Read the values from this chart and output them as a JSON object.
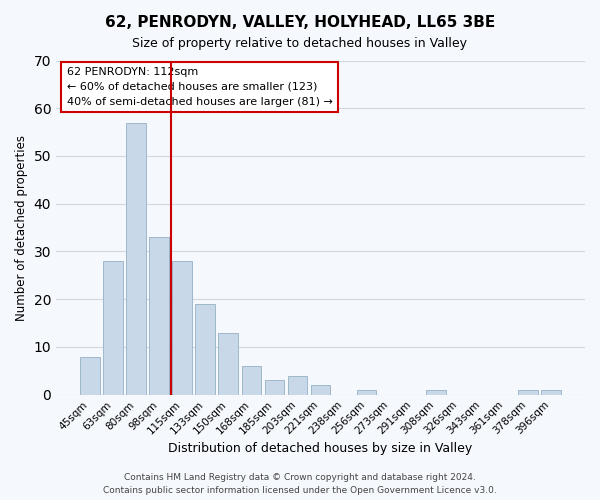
{
  "title": "62, PENRODYN, VALLEY, HOLYHEAD, LL65 3BE",
  "subtitle": "Size of property relative to detached houses in Valley",
  "xlabel": "Distribution of detached houses by size in Valley",
  "ylabel": "Number of detached properties",
  "bar_color": "#c8d8e8",
  "bar_edge_color": "#a0b8cc",
  "vline_color": "#cc0000",
  "vline_x": 3.5,
  "categories": [
    "45sqm",
    "63sqm",
    "80sqm",
    "98sqm",
    "115sqm",
    "133sqm",
    "150sqm",
    "168sqm",
    "185sqm",
    "203sqm",
    "221sqm",
    "238sqm",
    "256sqm",
    "273sqm",
    "291sqm",
    "308sqm",
    "326sqm",
    "343sqm",
    "361sqm",
    "378sqm",
    "396sqm"
  ],
  "values": [
    8,
    28,
    57,
    33,
    28,
    19,
    13,
    6,
    3,
    4,
    2,
    0,
    1,
    0,
    0,
    1,
    0,
    0,
    0,
    1,
    1
  ],
  "ylim": [
    0,
    70
  ],
  "yticks": [
    0,
    10,
    20,
    30,
    40,
    50,
    60,
    70
  ],
  "annotation_text": "62 PENRODYN: 112sqm\n← 60% of detached houses are smaller (123)\n40% of semi-detached houses are larger (81) →",
  "annotation_box_edge_color": "#cc0000",
  "annotation_box_face_color": "#ffffff",
  "footer_line1": "Contains HM Land Registry data © Crown copyright and database right 2024.",
  "footer_line2": "Contains public sector information licensed under the Open Government Licence v3.0.",
  "grid_color": "#d0d8e0",
  "background_color": "#f5f8fc"
}
